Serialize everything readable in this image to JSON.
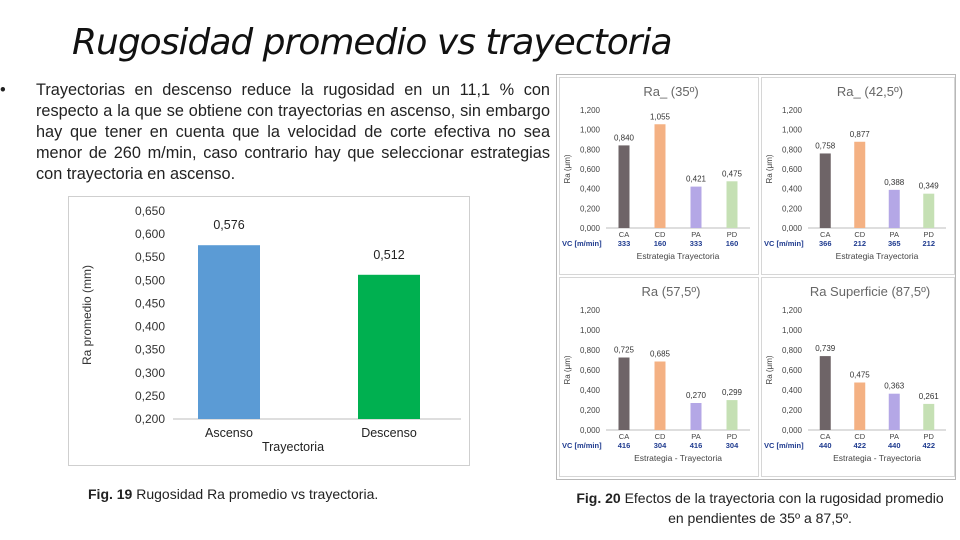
{
  "title": "Rugosidad promedio vs trayectoria",
  "bullet": {
    "symbol": "•",
    "text": "Trayectorias en descenso reduce la rugosidad en un 11,1 % con respecto a la que se obtiene con trayectorias en ascenso, sin embargo hay que tener en cuenta que la velocidad de corte efectiva no sea menor de 260 m/min, caso contrario hay que seleccionar estrategias con trayectoria en ascenso."
  },
  "captions": {
    "fig19_label": "Fig. 19",
    "fig19_text": " Rugosidad Ra promedio vs trayectoria.",
    "fig20_label": "Fig. 20",
    "fig20_text": " Efectos de la trayectoria con la rugosidad promedio en pendientes de 35º a 87,5º."
  },
  "chart_data": [
    {
      "type": "bar",
      "title": "",
      "xlabel": "Trayectoria",
      "ylabel": "Ra promedio (mm)",
      "categories": [
        "Ascenso",
        "Descenso"
      ],
      "values": [
        0.576,
        0.512
      ],
      "value_labels": [
        "0,576",
        "0,512"
      ],
      "ylim": [
        0.2,
        0.65
      ],
      "ticks": [
        "0,200",
        "0,250",
        "0,300",
        "0,350",
        "0,400",
        "0,450",
        "0,500",
        "0,550",
        "0,600",
        "0,650"
      ],
      "colors": [
        "#5b9bd5",
        "#00b050"
      ],
      "grid": false
    },
    {
      "type": "bar",
      "title": "Ra_ (35º)",
      "xlabel": "Estrategia  Trayectoria",
      "ylabel": "Ra (μm)",
      "categories": [
        "CA",
        "CD",
        "PA",
        "PD"
      ],
      "values": [
        0.84,
        1.055,
        0.421,
        0.475
      ],
      "value_labels": [
        "0,840",
        "1,055",
        "0,421",
        "0,475"
      ],
      "vc_label": "VC [m/min]",
      "vc_values": [
        "333",
        "160",
        "333",
        "160"
      ],
      "ylim": [
        0,
        1.2
      ],
      "ticks": [
        "0,000",
        "0,200",
        "0,400",
        "0,600",
        "0,800",
        "1,000",
        "1,200"
      ],
      "colors": [
        "#6e6467",
        "#f4b183",
        "#b4a7e6",
        "#c5e0b4"
      ]
    },
    {
      "type": "bar",
      "title": "Ra_ (42,5º)",
      "xlabel": "Estrategia  Trayectoria",
      "ylabel": "Ra (μm)",
      "categories": [
        "CA",
        "CD",
        "PA",
        "PD"
      ],
      "values": [
        0.758,
        0.877,
        0.388,
        0.349
      ],
      "value_labels": [
        "0,758",
        "0,877",
        "0,388",
        "0,349"
      ],
      "vc_label": "VC [m/min]",
      "vc_values": [
        "366",
        "212",
        "365",
        "212"
      ],
      "ylim": [
        0,
        1.2
      ],
      "ticks": [
        "0,000",
        "0,200",
        "0,400",
        "0,600",
        "0,800",
        "1,000",
        "1,200"
      ],
      "colors": [
        "#6e6467",
        "#f4b183",
        "#b4a7e6",
        "#c5e0b4"
      ]
    },
    {
      "type": "bar",
      "title": "Ra   (57,5º)",
      "xlabel": "Estrategia - Trayectoria",
      "ylabel": "Ra (μm)",
      "categories": [
        "CA",
        "CD",
        "PA",
        "PD"
      ],
      "values": [
        0.725,
        0.685,
        0.27,
        0.299
      ],
      "value_labels": [
        "0,725",
        "0,685",
        "0,270",
        "0,299"
      ],
      "vc_label": "VC [m/min]",
      "vc_values": [
        "416",
        "304",
        "416",
        "304"
      ],
      "ylim": [
        0,
        1.2
      ],
      "ticks": [
        "0,000",
        "0,200",
        "0,400",
        "0,600",
        "0,800",
        "1,000",
        "1,200"
      ],
      "colors": [
        "#6e6467",
        "#f4b183",
        "#b4a7e6",
        "#c5e0b4"
      ]
    },
    {
      "type": "bar",
      "title": "Ra Superficie (87,5º)",
      "xlabel": "Estrategia - Trayectoria",
      "ylabel": "Ra (μm)",
      "categories": [
        "CA",
        "CD",
        "PA",
        "PD"
      ],
      "values": [
        0.739,
        0.475,
        0.363,
        0.261
      ],
      "value_labels": [
        "0,739",
        "0,475",
        "0,363",
        "0,261"
      ],
      "vc_label": "VC [m/min]",
      "vc_values": [
        "440",
        "422",
        "440",
        "422"
      ],
      "ylim": [
        0,
        1.2
      ],
      "ticks": [
        "0,000",
        "0,200",
        "0,400",
        "0,600",
        "0,800",
        "1,000",
        "1,200"
      ],
      "colors": [
        "#6e6467",
        "#f4b183",
        "#b4a7e6",
        "#c5e0b4"
      ]
    }
  ]
}
